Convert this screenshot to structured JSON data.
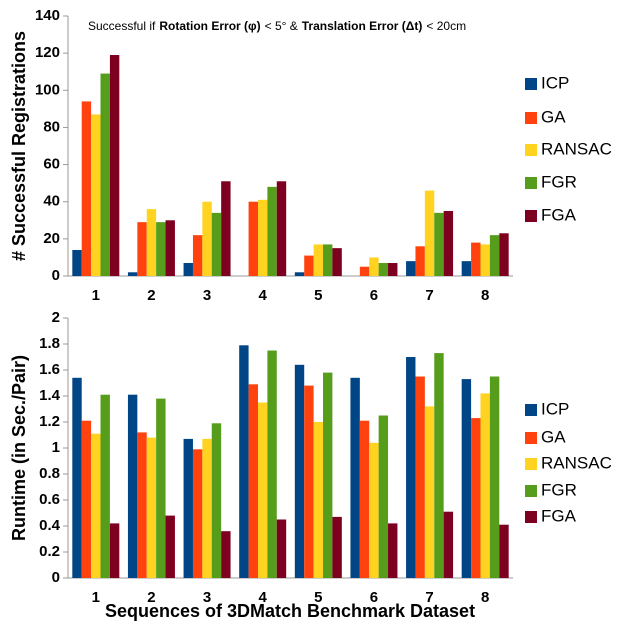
{
  "chart_data": [
    {
      "type": "bar",
      "annotation": [
        "Successful if",
        "Rotation Error (φ)",
        "< 5°  &",
        "Translation Error (Δt)",
        "< 20cm"
      ],
      "ylabel": "# Successful Registrations",
      "categories": [
        "1",
        "2",
        "3",
        "4",
        "5",
        "6",
        "7",
        "8"
      ],
      "series": [
        {
          "name": "ICP",
          "color": "#004586",
          "values": [
            14,
            2,
            7,
            0,
            2,
            0,
            8,
            8
          ]
        },
        {
          "name": "GA",
          "color": "#ff420e",
          "values": [
            94,
            29,
            22,
            40,
            11,
            5,
            16,
            18
          ]
        },
        {
          "name": "RANSAC",
          "color": "#ffd320",
          "values": [
            87,
            36,
            40,
            41,
            17,
            10,
            46,
            17
          ]
        },
        {
          "name": "FGR",
          "color": "#579d1c",
          "values": [
            109,
            29,
            34,
            48,
            17,
            7,
            34,
            22
          ]
        },
        {
          "name": "FGA",
          "color": "#7e0021",
          "values": [
            119,
            30,
            51,
            51,
            15,
            7,
            35,
            23
          ]
        }
      ],
      "ylim": [
        0,
        140
      ],
      "yticks": [
        0,
        20,
        40,
        60,
        80,
        100,
        120,
        140
      ],
      "legend": "right"
    },
    {
      "type": "bar",
      "ylabel": "Runtime (in Sec./Pair)",
      "xlabel": "Sequences of 3DMatch Benchmark Dataset",
      "categories": [
        "1",
        "2",
        "3",
        "4",
        "5",
        "6",
        "7",
        "8"
      ],
      "series": [
        {
          "name": "ICP",
          "color": "#004586",
          "values": [
            1.54,
            1.41,
            1.07,
            1.79,
            1.64,
            1.54,
            1.7,
            1.53
          ]
        },
        {
          "name": "GA",
          "color": "#ff420e",
          "values": [
            1.21,
            1.12,
            0.99,
            1.49,
            1.48,
            1.21,
            1.55,
            1.23
          ]
        },
        {
          "name": "RANSAC",
          "color": "#ffd320",
          "values": [
            1.11,
            1.08,
            1.07,
            1.35,
            1.2,
            1.04,
            1.32,
            1.42
          ]
        },
        {
          "name": "FGR",
          "color": "#579d1c",
          "values": [
            1.41,
            1.38,
            1.19,
            1.75,
            1.58,
            1.25,
            1.73,
            1.55
          ]
        },
        {
          "name": "FGA",
          "color": "#7e0021",
          "values": [
            0.42,
            0.48,
            0.36,
            0.45,
            0.47,
            0.42,
            0.51,
            0.41
          ]
        }
      ],
      "ylim": [
        0,
        2
      ],
      "yticks": [
        0,
        0.2,
        0.4,
        0.6,
        0.8,
        1,
        1.2,
        1.4,
        1.6,
        1.8,
        2
      ],
      "legend": "right"
    }
  ]
}
